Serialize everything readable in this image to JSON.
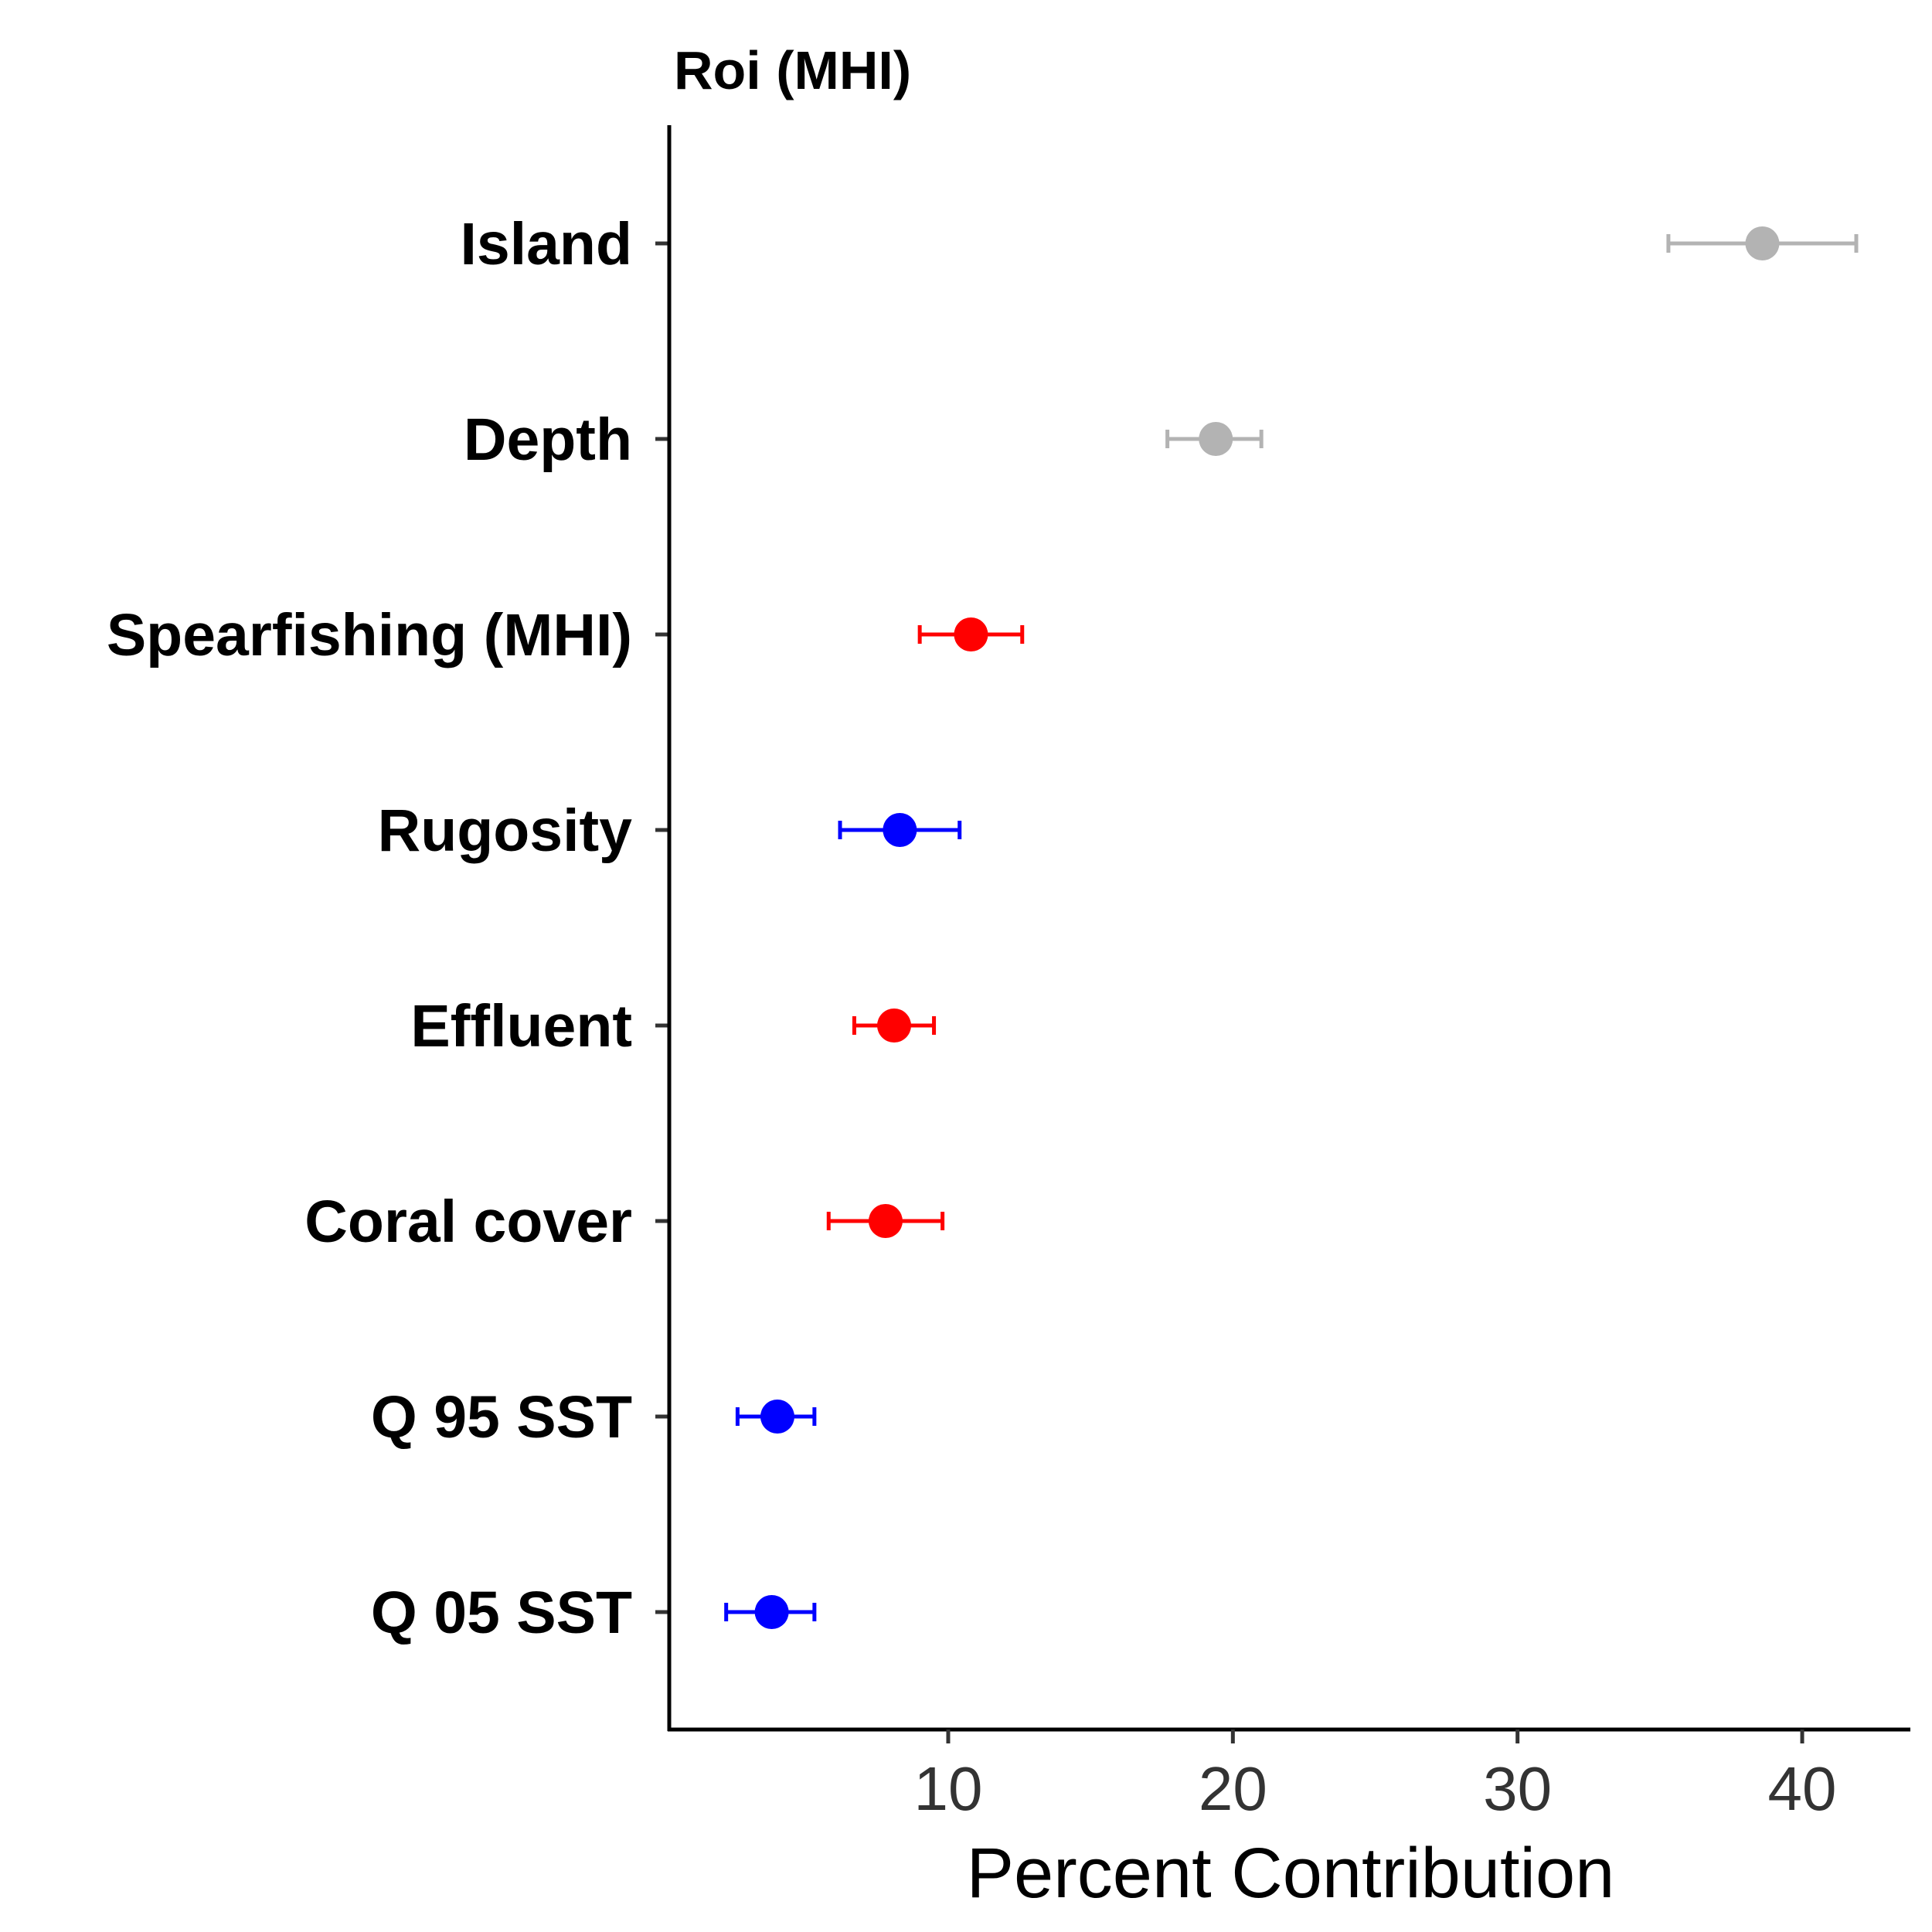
{
  "chart_data": {
    "type": "scatter",
    "title": "Roi (MHI)",
    "xlabel": "Percent Contribution",
    "ylabel": "",
    "xlim": [
      0.2,
      43.8
    ],
    "xticks": [
      10,
      20,
      30,
      40
    ],
    "grid": false,
    "legend": "none",
    "colors": {
      "gray": "#b3b3b3",
      "red": "#ff0000",
      "blue": "#0000ff"
    },
    "categories": [
      "Island",
      "Depth",
      "Spearfishing (MHI)",
      "Rugosity",
      "Effluent",
      "Coral cover",
      "Q 95 SST",
      "Q 05 SST"
    ],
    "points": [
      {
        "label": "Island",
        "value": 38.6,
        "low": 35.3,
        "high": 41.9,
        "color": "gray"
      },
      {
        "label": "Depth",
        "value": 19.4,
        "low": 17.7,
        "high": 21.0,
        "color": "gray"
      },
      {
        "label": "Spearfishing (MHI)",
        "value": 10.8,
        "low": 9.0,
        "high": 12.6,
        "color": "red"
      },
      {
        "label": "Rugosity",
        "value": 8.3,
        "low": 6.2,
        "high": 10.4,
        "color": "blue"
      },
      {
        "label": "Effluent",
        "value": 8.1,
        "low": 6.7,
        "high": 9.5,
        "color": "red"
      },
      {
        "label": "Coral cover",
        "value": 7.8,
        "low": 5.8,
        "high": 9.8,
        "color": "red"
      },
      {
        "label": "Q 95 SST",
        "value": 4.0,
        "low": 2.6,
        "high": 5.3,
        "color": "blue"
      },
      {
        "label": "Q 05 SST",
        "value": 3.8,
        "low": 2.2,
        "high": 5.3,
        "color": "blue"
      }
    ]
  }
}
